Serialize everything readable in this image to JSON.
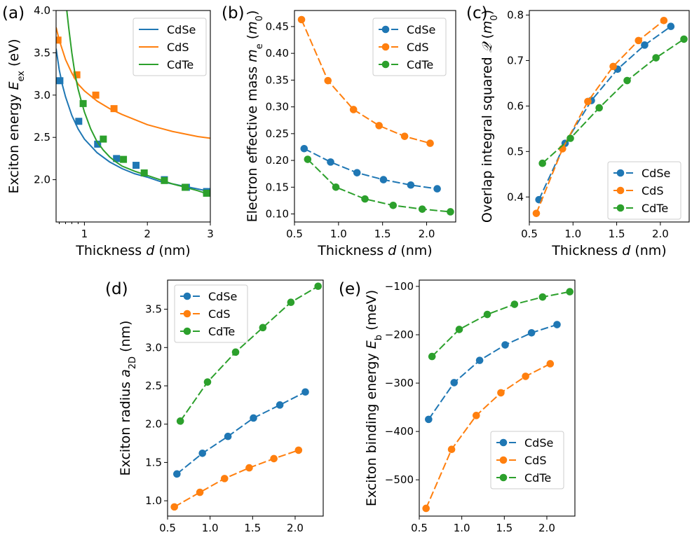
{
  "colors": {
    "CdSe": "#1f77b4",
    "CdS": "#ff7f0e",
    "CdTe": "#2ca02c"
  },
  "chart_data": [
    {
      "id": "a",
      "type": "line",
      "panel_label": "(a)",
      "title": "",
      "xlabel": "Thickness d (nm)",
      "ylabel": "Exciton energy E_ex (eV)",
      "xlabel_parts": {
        "pre": "Thickness ",
        "var": "d",
        "post": " (nm)"
      },
      "ylabel_parts": {
        "pre": "Exciton energy ",
        "var": "E",
        "sub": "ex",
        "post": " (eV)"
      },
      "xlim": [
        0.55,
        3.0
      ],
      "ylim": [
        1.5,
        4.0
      ],
      "xticks": [
        1,
        2,
        3
      ],
      "xtick_labels": [
        "1",
        "2",
        "3"
      ],
      "yticks": [
        2.0,
        2.5,
        3.0,
        3.5,
        4.0
      ],
      "ytick_labels": [
        "2.0",
        "2.5",
        "3.0",
        "3.5",
        "4.0"
      ],
      "legend_position": "top-right",
      "series": [
        {
          "name": "CdSe",
          "marker": "square",
          "curve": {
            "x": [
              0.55,
              0.6,
              0.65,
              0.7,
              0.8,
              0.9,
              1.0,
              1.2,
              1.4,
              1.6,
              1.8,
              2.0,
              2.2,
              2.4,
              2.6,
              2.8,
              3.0
            ],
            "y": [
              3.55,
              3.3,
              3.12,
              2.98,
              2.76,
              2.6,
              2.48,
              2.32,
              2.21,
              2.13,
              2.07,
              2.03,
              1.98,
              1.95,
              1.92,
              1.89,
              1.86
            ]
          },
          "points": {
            "x": [
              0.61,
              0.91,
              1.21,
              1.51,
              1.82,
              2.27,
              2.62,
              2.94
            ],
            "y": [
              3.17,
              2.69,
              2.42,
              2.25,
              2.17,
              2.0,
              1.91,
              1.86
            ]
          }
        },
        {
          "name": "CdS",
          "marker": "square",
          "curve": {
            "x": [
              0.55,
              0.6,
              0.7,
              0.8,
              0.9,
              1.0,
              1.2,
              1.4,
              1.6,
              1.8,
              2.0,
              2.2,
              2.4,
              2.6,
              2.8,
              3.0
            ],
            "y": [
              3.8,
              3.65,
              3.42,
              3.26,
              3.13,
              3.05,
              2.93,
              2.84,
              2.77,
              2.71,
              2.65,
              2.61,
              2.57,
              2.54,
              2.51,
              2.49
            ]
          },
          "points": {
            "x": [
              0.58,
              0.88,
              1.18,
              1.47
            ],
            "y": [
              3.65,
              3.24,
              3.0,
              2.84
            ]
          }
        },
        {
          "name": "CdTe",
          "marker": "square",
          "curve": {
            "x": [
              0.72,
              0.75,
              0.8,
              0.85,
              0.9,
              0.95,
              1.0,
              1.1,
              1.2,
              1.3,
              1.4,
              1.5,
              1.6,
              1.8,
              2.0,
              2.2,
              2.4,
              2.6,
              2.8,
              3.0
            ],
            "y": [
              4.0,
              3.8,
              3.5,
              3.25,
              3.07,
              2.93,
              2.8,
              2.6,
              2.45,
              2.35,
              2.27,
              2.21,
              2.16,
              2.1,
              2.05,
              2.0,
              1.95,
              1.91,
              1.87,
              1.82
            ]
          },
          "points": {
            "x": [
              0.98,
              1.3,
              1.62,
              1.95,
              2.27,
              2.6,
              2.94
            ],
            "y": [
              2.9,
              2.48,
              2.24,
              2.08,
              1.99,
              1.91,
              1.84
            ]
          }
        }
      ]
    },
    {
      "id": "b",
      "type": "line",
      "panel_label": "(b)",
      "title": "",
      "xlabel": "Thickness d (nm)",
      "ylabel": "Electron effective mass m_e (m_0)",
      "xlabel_parts": {
        "pre": "Thickness ",
        "var": "d",
        "post": " (nm)"
      },
      "ylabel_parts": {
        "pre": "Electron effective mass ",
        "var": "m",
        "sub": "e",
        "post": " (",
        "unit_var": "m",
        "unit_sub": "0",
        "post2": ")"
      },
      "xlim": [
        0.5,
        2.33
      ],
      "ylim": [
        0.085,
        0.48
      ],
      "xticks": [
        0.5,
        1.0,
        1.5,
        2.0
      ],
      "xtick_labels": [
        "0.5",
        "1.0",
        "1.5",
        "2.0"
      ],
      "yticks": [
        0.1,
        0.15,
        0.2,
        0.25,
        0.3,
        0.35,
        0.4,
        0.45
      ],
      "ytick_labels": [
        "0.10",
        "0.15",
        "0.20",
        "0.25",
        "0.30",
        "0.35",
        "0.40",
        "0.45"
      ],
      "legend_position": "top-right",
      "series": [
        {
          "name": "CdSe",
          "marker": "circle",
          "x": [
            0.61,
            0.91,
            1.21,
            1.51,
            1.82,
            2.12
          ],
          "y": [
            0.222,
            0.197,
            0.177,
            0.164,
            0.154,
            0.147
          ]
        },
        {
          "name": "CdS",
          "marker": "circle",
          "x": [
            0.58,
            0.88,
            1.17,
            1.46,
            1.75,
            2.04
          ],
          "y": [
            0.463,
            0.349,
            0.295,
            0.265,
            0.245,
            0.232
          ]
        },
        {
          "name": "CdTe",
          "marker": "circle",
          "x": [
            0.65,
            0.97,
            1.3,
            1.62,
            1.95,
            2.27
          ],
          "y": [
            0.202,
            0.15,
            0.128,
            0.116,
            0.109,
            0.104
          ]
        }
      ]
    },
    {
      "id": "c",
      "type": "line",
      "panel_label": "(c)",
      "title": "",
      "xlabel": "Thickness d (nm)",
      "ylabel": "Overlap integral squared Q (m_0)",
      "xlabel_parts": {
        "pre": "Thickness ",
        "var": "d",
        "post": " (nm)"
      },
      "ylabel_parts": {
        "pre": "Overlap integral squared ",
        "var": "𝒬",
        "post": " (",
        "unit_var": "m",
        "unit_sub": "0",
        "post2": ")"
      },
      "xlim": [
        0.5,
        2.33
      ],
      "ylim": [
        0.345,
        0.81
      ],
      "xticks": [
        0.5,
        1.0,
        1.5,
        2.0
      ],
      "xtick_labels": [
        "0.5",
        "1.0",
        "1.5",
        "2.0"
      ],
      "yticks": [
        0.4,
        0.5,
        0.6,
        0.7,
        0.8
      ],
      "ytick_labels": [
        "0.4",
        "0.5",
        "0.6",
        "0.7",
        "0.8"
      ],
      "legend_position": "bottom-right",
      "series": [
        {
          "name": "CdSe",
          "marker": "circle",
          "x": [
            0.61,
            0.91,
            1.21,
            1.51,
            1.82,
            2.12
          ],
          "y": [
            0.394,
            0.518,
            0.612,
            0.681,
            0.734,
            0.775
          ]
        },
        {
          "name": "CdS",
          "marker": "circle",
          "x": [
            0.58,
            0.88,
            1.17,
            1.46,
            1.75,
            2.04
          ],
          "y": [
            0.364,
            0.506,
            0.61,
            0.687,
            0.744,
            0.788
          ]
        },
        {
          "name": "CdTe",
          "marker": "circle",
          "x": [
            0.65,
            0.97,
            1.3,
            1.62,
            1.95,
            2.27
          ],
          "y": [
            0.474,
            0.529,
            0.596,
            0.656,
            0.706,
            0.747
          ]
        }
      ]
    },
    {
      "id": "d",
      "type": "line",
      "panel_label": "(d)",
      "title": "",
      "xlabel": "Thickness d (nm)",
      "ylabel": "Exciton radius a_2D (nm)",
      "xlabel_parts": {
        "pre": "Thickness ",
        "var": "d",
        "post": " (nm)"
      },
      "ylabel_parts": {
        "pre": "Exciton radius ",
        "var": "a",
        "sub": "2D",
        "post": " (nm)"
      },
      "xlim": [
        0.5,
        2.33
      ],
      "ylim": [
        0.8,
        3.88
      ],
      "xticks": [
        0.5,
        1.0,
        1.5,
        2.0
      ],
      "xtick_labels": [
        "0.5",
        "1.0",
        "1.5",
        "2.0"
      ],
      "yticks": [
        1.0,
        1.5,
        2.0,
        2.5,
        3.0,
        3.5
      ],
      "ytick_labels": [
        "1.0",
        "1.5",
        "2.0",
        "2.5",
        "3.0",
        "3.5"
      ],
      "legend_position": "top-left",
      "series": [
        {
          "name": "CdSe",
          "marker": "circle",
          "x": [
            0.61,
            0.91,
            1.21,
            1.51,
            1.82,
            2.12
          ],
          "y": [
            1.35,
            1.62,
            1.84,
            2.08,
            2.25,
            2.42
          ]
        },
        {
          "name": "CdS",
          "marker": "circle",
          "x": [
            0.58,
            0.88,
            1.17,
            1.46,
            1.75,
            2.04
          ],
          "y": [
            0.92,
            1.11,
            1.29,
            1.43,
            1.55,
            1.66
          ]
        },
        {
          "name": "CdTe",
          "marker": "circle",
          "x": [
            0.65,
            0.97,
            1.3,
            1.62,
            1.95,
            2.27
          ],
          "y": [
            2.04,
            2.55,
            2.94,
            3.26,
            3.59,
            3.8
          ]
        }
      ]
    },
    {
      "id": "e",
      "type": "line",
      "panel_label": "(e)",
      "title": "",
      "xlabel": "Thickness d (nm)",
      "ylabel": "Exciton binding energy E_b (meV)",
      "xlabel_parts": {
        "pre": "Thickness ",
        "var": "d",
        "post": " (nm)"
      },
      "ylabel_parts": {
        "pre": "Exciton binding energy ",
        "var": "E",
        "sub": "b",
        "post": " (meV)"
      },
      "xlim": [
        0.5,
        2.33
      ],
      "ylim": [
        -575,
        -87
      ],
      "xticks": [
        0.5,
        1.0,
        1.5,
        2.0
      ],
      "xtick_labels": [
        "0.5",
        "1.0",
        "1.5",
        "2.0"
      ],
      "yticks": [
        -500,
        -400,
        -300,
        -200,
        -100
      ],
      "ytick_labels": [
        "−500",
        "−400",
        "−300",
        "−200",
        "−100"
      ],
      "legend_position": "bottom-right",
      "series": [
        {
          "name": "CdSe",
          "marker": "circle",
          "x": [
            0.61,
            0.91,
            1.21,
            1.51,
            1.82,
            2.12
          ],
          "y": [
            -375,
            -299,
            -253,
            -221,
            -196,
            -179
          ]
        },
        {
          "name": "CdS",
          "marker": "circle",
          "x": [
            0.58,
            0.88,
            1.17,
            1.46,
            1.75,
            2.04
          ],
          "y": [
            -559,
            -437,
            -367,
            -320,
            -286,
            -260
          ]
        },
        {
          "name": "CdTe",
          "marker": "circle",
          "x": [
            0.65,
            0.97,
            1.3,
            1.62,
            1.95,
            2.27
          ],
          "y": [
            -245,
            -189,
            -158,
            -137,
            -122,
            -111
          ]
        }
      ]
    }
  ]
}
